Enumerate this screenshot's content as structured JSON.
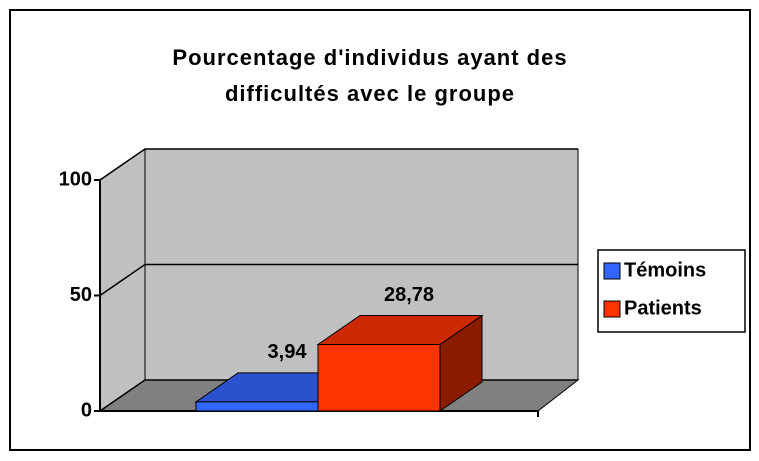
{
  "chart_data": {
    "type": "bar3d",
    "title": "Pourcentage d'individus ayant des difficultés avec le groupe",
    "categories": [
      null
    ],
    "series": [
      {
        "name": "Témoins",
        "color": "#3366ff",
        "values": [
          3.94
        ],
        "value_labels": [
          "3,94"
        ]
      },
      {
        "name": "Patients",
        "color": "#ff3300",
        "values": [
          28.78
        ],
        "value_labels": [
          "28,78"
        ]
      }
    ],
    "ylim": [
      0,
      100
    ],
    "yticks": [
      0,
      50,
      100
    ],
    "grid": true,
    "legend": "right"
  }
}
